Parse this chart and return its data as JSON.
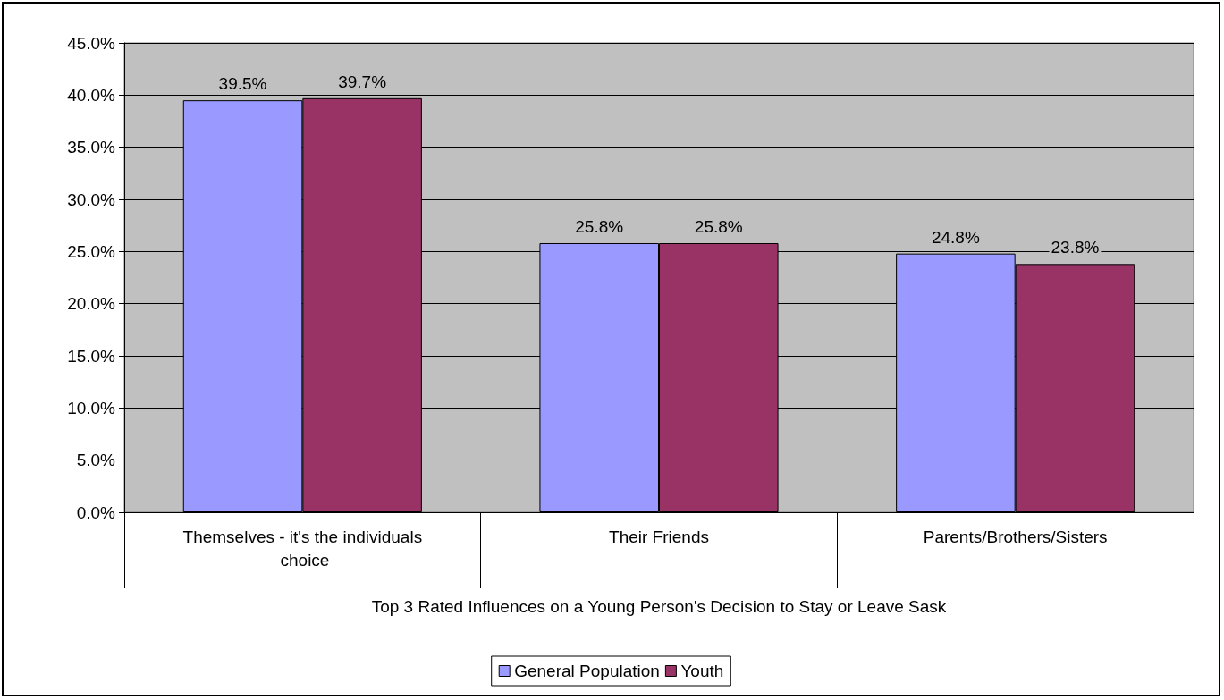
{
  "chart_data": {
    "type": "bar",
    "xlabel": "Top 3 Rated Influences on a Young Person's Decision to Stay or Leave Sask",
    "categories": [
      "Themselves - it's the individuals choice",
      "Their Friends",
      "Parents/Brothers/Sisters"
    ],
    "series": [
      {
        "name": "General Population",
        "color": "#9999ff",
        "values": [
          39.5,
          25.8,
          24.8
        ],
        "value_labels": [
          "39.5%",
          "25.8%",
          "24.8%"
        ]
      },
      {
        "name": "Youth",
        "color": "#993366",
        "values": [
          39.7,
          25.8,
          23.8
        ],
        "value_labels": [
          "39.7%",
          "25.8%",
          "23.8%"
        ]
      }
    ],
    "ylim": [
      0,
      45
    ],
    "yticks": [
      {
        "value": 0,
        "label": "0.0%"
      },
      {
        "value": 5,
        "label": "5.0%"
      },
      {
        "value": 10,
        "label": "10.0%"
      },
      {
        "value": 15,
        "label": "15.0%"
      },
      {
        "value": 20,
        "label": "20.0%"
      },
      {
        "value": 25,
        "label": "25.0%"
      },
      {
        "value": 30,
        "label": "30.0%"
      },
      {
        "value": 35,
        "label": "35.0%"
      },
      {
        "value": 40,
        "label": "40.0%"
      },
      {
        "value": 45,
        "label": "45.0%"
      }
    ],
    "grid": "y",
    "legend": "bottom"
  }
}
